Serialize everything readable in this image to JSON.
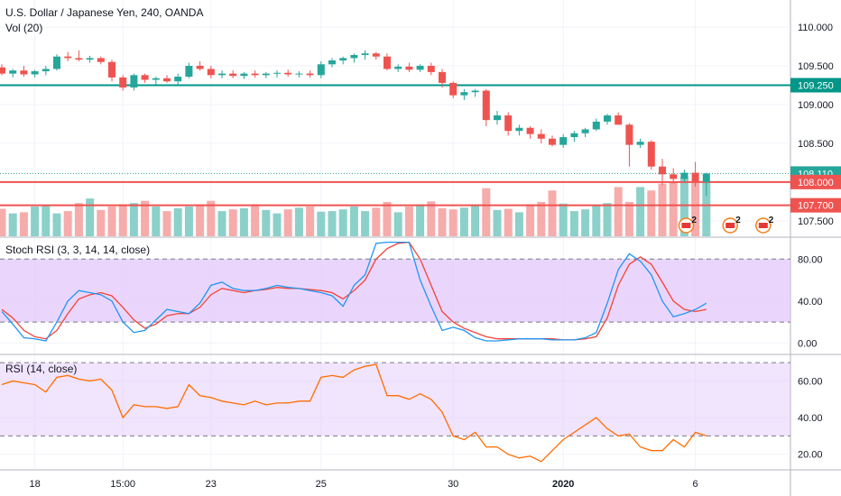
{
  "header": {
    "title": "U.S. Dollar / Japanese Yen, 240, OANDA",
    "volume_label": "Vol (20)",
    "stoch_label": "Stoch RSI (3, 3, 14, 14, close)",
    "rsi_label": "RSI (14, close)"
  },
  "colors": {
    "bull": "#26a69a",
    "bear": "#ef5350",
    "stoch_k": "#2196f3",
    "stoch_d": "#f44336",
    "rsi_line": "#ff6d00",
    "band_fill": "#e1c4fb",
    "support_line": "#ef5350",
    "resistance_line": "#009688"
  },
  "chart_data": [
    {
      "type": "candlestick",
      "ylim": [
        107.3,
        110.35
      ],
      "yticks": [
        "110.000",
        "109.500",
        "109.000",
        "108.500",
        "107.500"
      ],
      "price_labels": [
        {
          "value": 109.25,
          "text": "109.250",
          "color": "#009688"
        },
        {
          "value": 108.11,
          "text": "108.110",
          "color": "#26a69a"
        },
        {
          "value": 108.0,
          "text": "108.000",
          "color": "#ef5350"
        },
        {
          "value": 107.7,
          "text": "107.700",
          "color": "#ef5350"
        }
      ],
      "horizontal_lines": [
        {
          "value": 109.25,
          "color": "#009688"
        },
        {
          "value": 108.0,
          "color": "#ef5350"
        },
        {
          "value": 107.7,
          "color": "#ef5350"
        }
      ],
      "last_price": 108.11,
      "xticks": [
        {
          "index": 3,
          "text": "18"
        },
        {
          "index": 11,
          "text": "15:00"
        },
        {
          "index": 19,
          "text": "23"
        },
        {
          "index": 29,
          "text": "25"
        },
        {
          "index": 41,
          "text": "30"
        },
        {
          "index": 51,
          "text": "2020"
        },
        {
          "index": 63,
          "text": "6"
        }
      ],
      "ohlc": [
        [
          109.48,
          109.52,
          109.38,
          109.4
        ],
        [
          109.4,
          109.46,
          109.35,
          109.44
        ],
        [
          109.44,
          109.5,
          109.36,
          109.39
        ],
        [
          109.39,
          109.45,
          109.35,
          109.43
        ],
        [
          109.43,
          109.5,
          109.38,
          109.46
        ],
        [
          109.46,
          109.65,
          109.44,
          109.62
        ],
        [
          109.62,
          109.68,
          109.56,
          109.6
        ],
        [
          109.6,
          109.7,
          109.56,
          109.58
        ],
        [
          109.58,
          109.63,
          109.54,
          109.6
        ],
        [
          109.6,
          109.62,
          109.52,
          109.55
        ],
        [
          109.55,
          109.58,
          109.3,
          109.35
        ],
        [
          109.35,
          109.38,
          109.18,
          109.22
        ],
        [
          109.22,
          109.4,
          109.18,
          109.38
        ],
        [
          109.38,
          109.4,
          109.28,
          109.32
        ],
        [
          109.32,
          109.36,
          109.26,
          109.34
        ],
        [
          109.34,
          109.38,
          109.28,
          109.3
        ],
        [
          109.3,
          109.4,
          109.26,
          109.36
        ],
        [
          109.36,
          109.54,
          109.34,
          109.5
        ],
        [
          109.5,
          109.56,
          109.44,
          109.46
        ],
        [
          109.46,
          109.5,
          109.34,
          109.38
        ],
        [
          109.38,
          109.44,
          109.34,
          109.4
        ],
        [
          109.4,
          109.44,
          109.34,
          109.37
        ],
        [
          109.37,
          109.42,
          109.33,
          109.4
        ],
        [
          109.4,
          109.44,
          109.35,
          109.38
        ],
        [
          109.38,
          109.42,
          109.34,
          109.4
        ],
        [
          109.4,
          109.44,
          109.35,
          109.41
        ],
        [
          109.41,
          109.45,
          109.36,
          109.39
        ],
        [
          109.39,
          109.43,
          109.35,
          109.4
        ],
        [
          109.4,
          109.44,
          109.35,
          109.38
        ],
        [
          109.38,
          109.56,
          109.34,
          109.52
        ],
        [
          109.52,
          109.6,
          109.48,
          109.57
        ],
        [
          109.57,
          109.62,
          109.52,
          109.6
        ],
        [
          109.6,
          109.66,
          109.54,
          109.64
        ],
        [
          109.64,
          109.7,
          109.58,
          109.66
        ],
        [
          109.66,
          109.68,
          109.58,
          109.62
        ],
        [
          109.62,
          109.66,
          109.44,
          109.46
        ],
        [
          109.46,
          109.52,
          109.42,
          109.49
        ],
        [
          109.49,
          109.54,
          109.42,
          109.45
        ],
        [
          109.45,
          109.52,
          109.42,
          109.5
        ],
        [
          109.5,
          109.54,
          109.38,
          109.42
        ],
        [
          109.42,
          109.46,
          109.22,
          109.28
        ],
        [
          109.28,
          109.3,
          109.08,
          109.12
        ],
        [
          109.12,
          109.2,
          109.06,
          109.16
        ],
        [
          109.16,
          109.2,
          109.1,
          109.18
        ],
        [
          109.18,
          109.2,
          108.72,
          108.8
        ],
        [
          108.8,
          108.92,
          108.74,
          108.86
        ],
        [
          108.86,
          108.9,
          108.6,
          108.66
        ],
        [
          108.66,
          108.74,
          108.6,
          108.7
        ],
        [
          108.7,
          108.72,
          108.56,
          108.62
        ],
        [
          108.62,
          108.68,
          108.5,
          108.56
        ],
        [
          108.56,
          108.6,
          108.46,
          108.48
        ],
        [
          108.48,
          108.62,
          108.44,
          108.58
        ],
        [
          108.58,
          108.66,
          108.52,
          108.63
        ],
        [
          108.63,
          108.7,
          108.58,
          108.68
        ],
        [
          108.68,
          108.82,
          108.66,
          108.78
        ],
        [
          108.78,
          108.88,
          108.74,
          108.86
        ],
        [
          108.86,
          108.9,
          108.74,
          108.74
        ],
        [
          108.74,
          108.76,
          108.2,
          108.48
        ],
        [
          108.48,
          108.56,
          108.44,
          108.52
        ],
        [
          108.52,
          108.54,
          108.16,
          108.2
        ],
        [
          108.2,
          108.3,
          107.96,
          108.1
        ],
        [
          108.1,
          108.18,
          107.98,
          108.04
        ],
        [
          108.04,
          108.16,
          108.0,
          108.12
        ],
        [
          108.12,
          108.26,
          107.94,
          108.0
        ],
        [
          108.0,
          108.12,
          107.82,
          108.11
        ]
      ],
      "volume": [
        48,
        40,
        42,
        52,
        55,
        40,
        44,
        58,
        66,
        46,
        52,
        56,
        58,
        62,
        52,
        44,
        49,
        52,
        56,
        62,
        44,
        47,
        49,
        56,
        46,
        40,
        47,
        50,
        52,
        43,
        44,
        47,
        52,
        44,
        50,
        60,
        42,
        52,
        56,
        61,
        49,
        47,
        50,
        56,
        84,
        46,
        48,
        42,
        56,
        60,
        80,
        57,
        44,
        47,
        55,
        58,
        86,
        60,
        86,
        80,
        92,
        94,
        104,
        95,
        97
      ]
    },
    {
      "type": "line",
      "name": "Stoch RSI",
      "ylim": [
        -10,
        100
      ],
      "yticks": [
        "80.00",
        "40.00",
        "0.00"
      ],
      "bands": [
        20,
        80
      ],
      "k": [
        30,
        18,
        5,
        4,
        2,
        20,
        40,
        50,
        48,
        46,
        40,
        20,
        10,
        12,
        22,
        32,
        30,
        28,
        38,
        55,
        58,
        52,
        50,
        50,
        52,
        55,
        53,
        52,
        50,
        48,
        45,
        35,
        55,
        65,
        95,
        96,
        96,
        96,
        60,
        35,
        12,
        15,
        12,
        5,
        2,
        2,
        3,
        4,
        4,
        4,
        3,
        3,
        3,
        5,
        10,
        38,
        70,
        85,
        78,
        65,
        40,
        25,
        28,
        32,
        38
      ],
      "d": [
        32,
        24,
        12,
        6,
        4,
        12,
        28,
        42,
        46,
        48,
        45,
        34,
        22,
        14,
        18,
        26,
        28,
        28,
        34,
        46,
        52,
        50,
        48,
        50,
        51,
        53,
        52,
        52,
        51,
        50,
        48,
        42,
        50,
        60,
        80,
        90,
        95,
        96,
        80,
        55,
        30,
        20,
        14,
        10,
        6,
        4,
        4,
        4,
        4,
        4,
        4,
        3,
        3,
        4,
        6,
        24,
        55,
        75,
        82,
        75,
        58,
        40,
        32,
        30,
        32
      ]
    },
    {
      "type": "line",
      "name": "RSI",
      "ylim": [
        12,
        74
      ],
      "yticks": [
        "60.00",
        "40.00",
        "20.00"
      ],
      "bands": [
        30,
        70
      ],
      "values": [
        58,
        60,
        59,
        58,
        54,
        62,
        63,
        61,
        60,
        61,
        55,
        40,
        47,
        46,
        46,
        45,
        46,
        58,
        52,
        51,
        49,
        48,
        47,
        49,
        47,
        48,
        48,
        49,
        49,
        62,
        63,
        62,
        66,
        68,
        69,
        52,
        52,
        50,
        53,
        50,
        43,
        30,
        28,
        32,
        24,
        24,
        20,
        18,
        19,
        16,
        22,
        28,
        32,
        36,
        40,
        34,
        30,
        31,
        24,
        22,
        22,
        28,
        24,
        32,
        30
      ]
    }
  ]
}
